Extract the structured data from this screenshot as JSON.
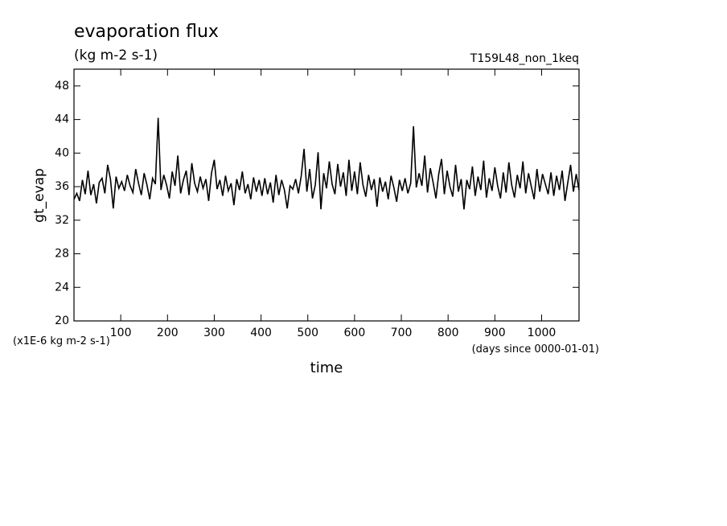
{
  "chart_data": {
    "type": "line",
    "title": "evaporation flux",
    "subtitle": "(kg m-2 s-1)",
    "annotation": "T159L48_non_1keq",
    "y_label": "gt_evap",
    "x_label": "time",
    "y_unit": "(x1E-6 kg m-2 s-1)",
    "x_unit": "(days since 0000-01-01)",
    "xlim": [
      0,
      1080
    ],
    "ylim": [
      20,
      50
    ],
    "xticks": [
      100,
      200,
      300,
      400,
      500,
      600,
      700,
      800,
      900,
      1000
    ],
    "yticks": [
      20,
      24,
      28,
      32,
      36,
      40,
      44,
      48
    ],
    "x": [
      0,
      6,
      12,
      18,
      24,
      30,
      36,
      42,
      48,
      54,
      60,
      66,
      72,
      78,
      84,
      90,
      96,
      102,
      108,
      114,
      120,
      126,
      132,
      138,
      144,
      150,
      156,
      162,
      168,
      174,
      180,
      186,
      192,
      198,
      204,
      210,
      216,
      222,
      228,
      234,
      240,
      246,
      252,
      258,
      264,
      270,
      276,
      282,
      288,
      294,
      300,
      306,
      312,
      318,
      324,
      330,
      336,
      342,
      348,
      354,
      360,
      366,
      372,
      378,
      384,
      390,
      396,
      402,
      408,
      414,
      420,
      426,
      432,
      438,
      444,
      450,
      456,
      462,
      468,
      474,
      480,
      486,
      492,
      498,
      504,
      510,
      516,
      522,
      528,
      534,
      540,
      546,
      552,
      558,
      564,
      570,
      576,
      582,
      588,
      594,
      600,
      606,
      612,
      618,
      624,
      630,
      636,
      642,
      648,
      654,
      660,
      666,
      672,
      678,
      684,
      690,
      696,
      702,
      708,
      714,
      720,
      726,
      732,
      738,
      744,
      750,
      756,
      762,
      768,
      774,
      780,
      786,
      792,
      798,
      804,
      810,
      816,
      822,
      828,
      834,
      840,
      846,
      852,
      858,
      864,
      870,
      876,
      882,
      888,
      894,
      900,
      906,
      912,
      918,
      924,
      930,
      936,
      942,
      948,
      954,
      960,
      966,
      972,
      978,
      984,
      990,
      996,
      1002,
      1008,
      1014,
      1020,
      1026,
      1032,
      1038,
      1044,
      1050,
      1056,
      1062,
      1068,
      1074,
      1080
    ],
    "series": [
      {
        "name": "gt_evap",
        "color": "#000000",
        "values": [
          34.5,
          35.2,
          34.3,
          36.8,
          35.1,
          37.9,
          35.0,
          36.3,
          34.0,
          36.5,
          37.0,
          35.2,
          38.6,
          36.9,
          33.4,
          37.2,
          35.8,
          36.6,
          35.5,
          37.4,
          36.1,
          35.3,
          38.1,
          36.4,
          35.0,
          37.6,
          36.2,
          34.5,
          37.0,
          36.3,
          44.2,
          35.6,
          37.4,
          36.2,
          34.6,
          37.8,
          36.1,
          39.7,
          35.2,
          36.8,
          37.9,
          35.0,
          38.8,
          36.4,
          35.4,
          37.2,
          35.8,
          36.9,
          34.3,
          37.6,
          39.2,
          35.7,
          36.8,
          34.9,
          37.3,
          35.5,
          36.4,
          33.8,
          36.9,
          35.6,
          37.8,
          35.2,
          36.3,
          34.5,
          37.1,
          35.4,
          36.8,
          34.9,
          37.0,
          35.1,
          36.5,
          34.1,
          37.4,
          35.0,
          36.8,
          35.6,
          33.4,
          36.1,
          35.7,
          36.9,
          35.2,
          37.3,
          40.5,
          35.4,
          38.1,
          34.6,
          36.2,
          40.1,
          33.3,
          37.6,
          35.8,
          39.0,
          36.3,
          35.1,
          38.7,
          36.0,
          37.7,
          34.9,
          39.2,
          35.5,
          37.8,
          35.1,
          38.9,
          36.2,
          34.8,
          37.4,
          35.6,
          36.9,
          33.6,
          37.1,
          35.4,
          36.6,
          34.5,
          37.3,
          35.9,
          34.2,
          36.8,
          35.5,
          37.0,
          35.2,
          36.4,
          43.2,
          35.9,
          37.6,
          36.1,
          39.7,
          35.3,
          38.2,
          36.5,
          34.6,
          37.5,
          39.3,
          35.1,
          37.9,
          36.0,
          34.8,
          38.6,
          35.4,
          36.9,
          33.3,
          36.8,
          35.7,
          38.4,
          34.9,
          37.2,
          35.6,
          39.1,
          34.7,
          37.0,
          35.5,
          38.3,
          36.1,
          34.6,
          37.7,
          35.3,
          38.9,
          36.2,
          34.7,
          37.4,
          35.8,
          39.0,
          35.2,
          37.6,
          36.0,
          34.5,
          38.1,
          35.4,
          37.5,
          36.3,
          35.1,
          37.7,
          34.9,
          37.3,
          35.6,
          37.9,
          34.3,
          36.5,
          38.6,
          35.4,
          37.5,
          35.6
        ]
      }
    ]
  }
}
